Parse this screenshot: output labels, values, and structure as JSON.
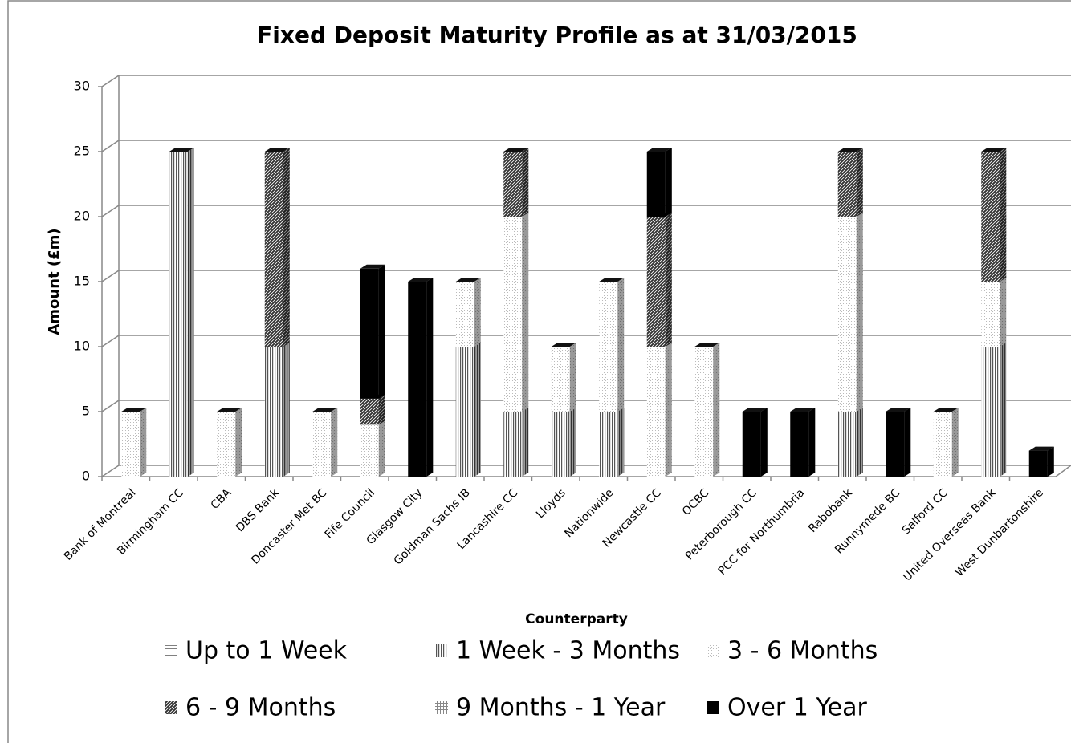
{
  "chart_data": {
    "type": "bar3d_stacked",
    "title": "Fixed Deposit Maturity Profile as at 31/03/2015",
    "ylabel": "Amount (£m)",
    "xlabel": "Counterparty",
    "categories": [
      "Bank of Montreal",
      "Birmingham CC",
      "CBA",
      "DBS Bank",
      "Doncaster Met BC",
      "Fife Council",
      "Glasgow City",
      "Goldman Sachs IB",
      "Lancashire CC",
      "Lloyds",
      "Nationwide",
      "Newcastle CC",
      "OCBC",
      "Peterborough CC",
      "PCC for Northumbria",
      "Rabobank",
      "Runnymede BC",
      "Salford CC",
      "United Overseas Bank",
      "West Dunbartonshire"
    ],
    "series": [
      {
        "name": "Up to 1 Week",
        "color": "#808080",
        "pattern": "horizontal",
        "values": [
          0,
          0,
          0,
          0,
          0,
          0,
          0,
          0,
          0,
          0,
          0,
          0,
          0,
          0,
          0,
          0,
          0,
          0,
          0,
          0
        ]
      },
      {
        "name": "1 Week - 3 Months",
        "color": "#555555",
        "pattern": "vertical",
        "values": [
          0,
          25,
          0,
          10,
          0,
          0,
          0,
          10,
          5,
          5,
          5,
          0,
          0,
          0,
          0,
          5,
          0,
          0,
          10,
          0
        ]
      },
      {
        "name": "3 - 6 Months",
        "color": "#bbbbbb",
        "pattern": "dots",
        "values": [
          5,
          0,
          5,
          0,
          5,
          4,
          0,
          5,
          15,
          5,
          10,
          10,
          10,
          0,
          0,
          15,
          0,
          5,
          5,
          0
        ]
      },
      {
        "name": "6 - 9 Months",
        "color": "#333333",
        "pattern": "diagonal",
        "values": [
          0,
          0,
          0,
          15,
          0,
          2,
          0,
          0,
          5,
          0,
          0,
          10,
          0,
          0,
          0,
          5,
          0,
          0,
          10,
          0
        ]
      },
      {
        "name": "9 Months - 1 Year",
        "color": "#888888",
        "pattern": "grid",
        "values": [
          0,
          0,
          0,
          0,
          0,
          0,
          0,
          0,
          0,
          0,
          0,
          0,
          0,
          0,
          0,
          0,
          0,
          0,
          0,
          0
        ]
      },
      {
        "name": "Over 1 Year",
        "color": "#000000",
        "pattern": "solid",
        "values": [
          0,
          0,
          0,
          0,
          0,
          10,
          15,
          0,
          0,
          0,
          0,
          5,
          0,
          5,
          5,
          0,
          5,
          0,
          0,
          2
        ]
      }
    ],
    "ylim": [
      0,
      30
    ],
    "yticks": [
      0,
      5,
      10,
      15,
      20,
      25,
      30
    ],
    "grid": true,
    "legend": "bottom"
  }
}
